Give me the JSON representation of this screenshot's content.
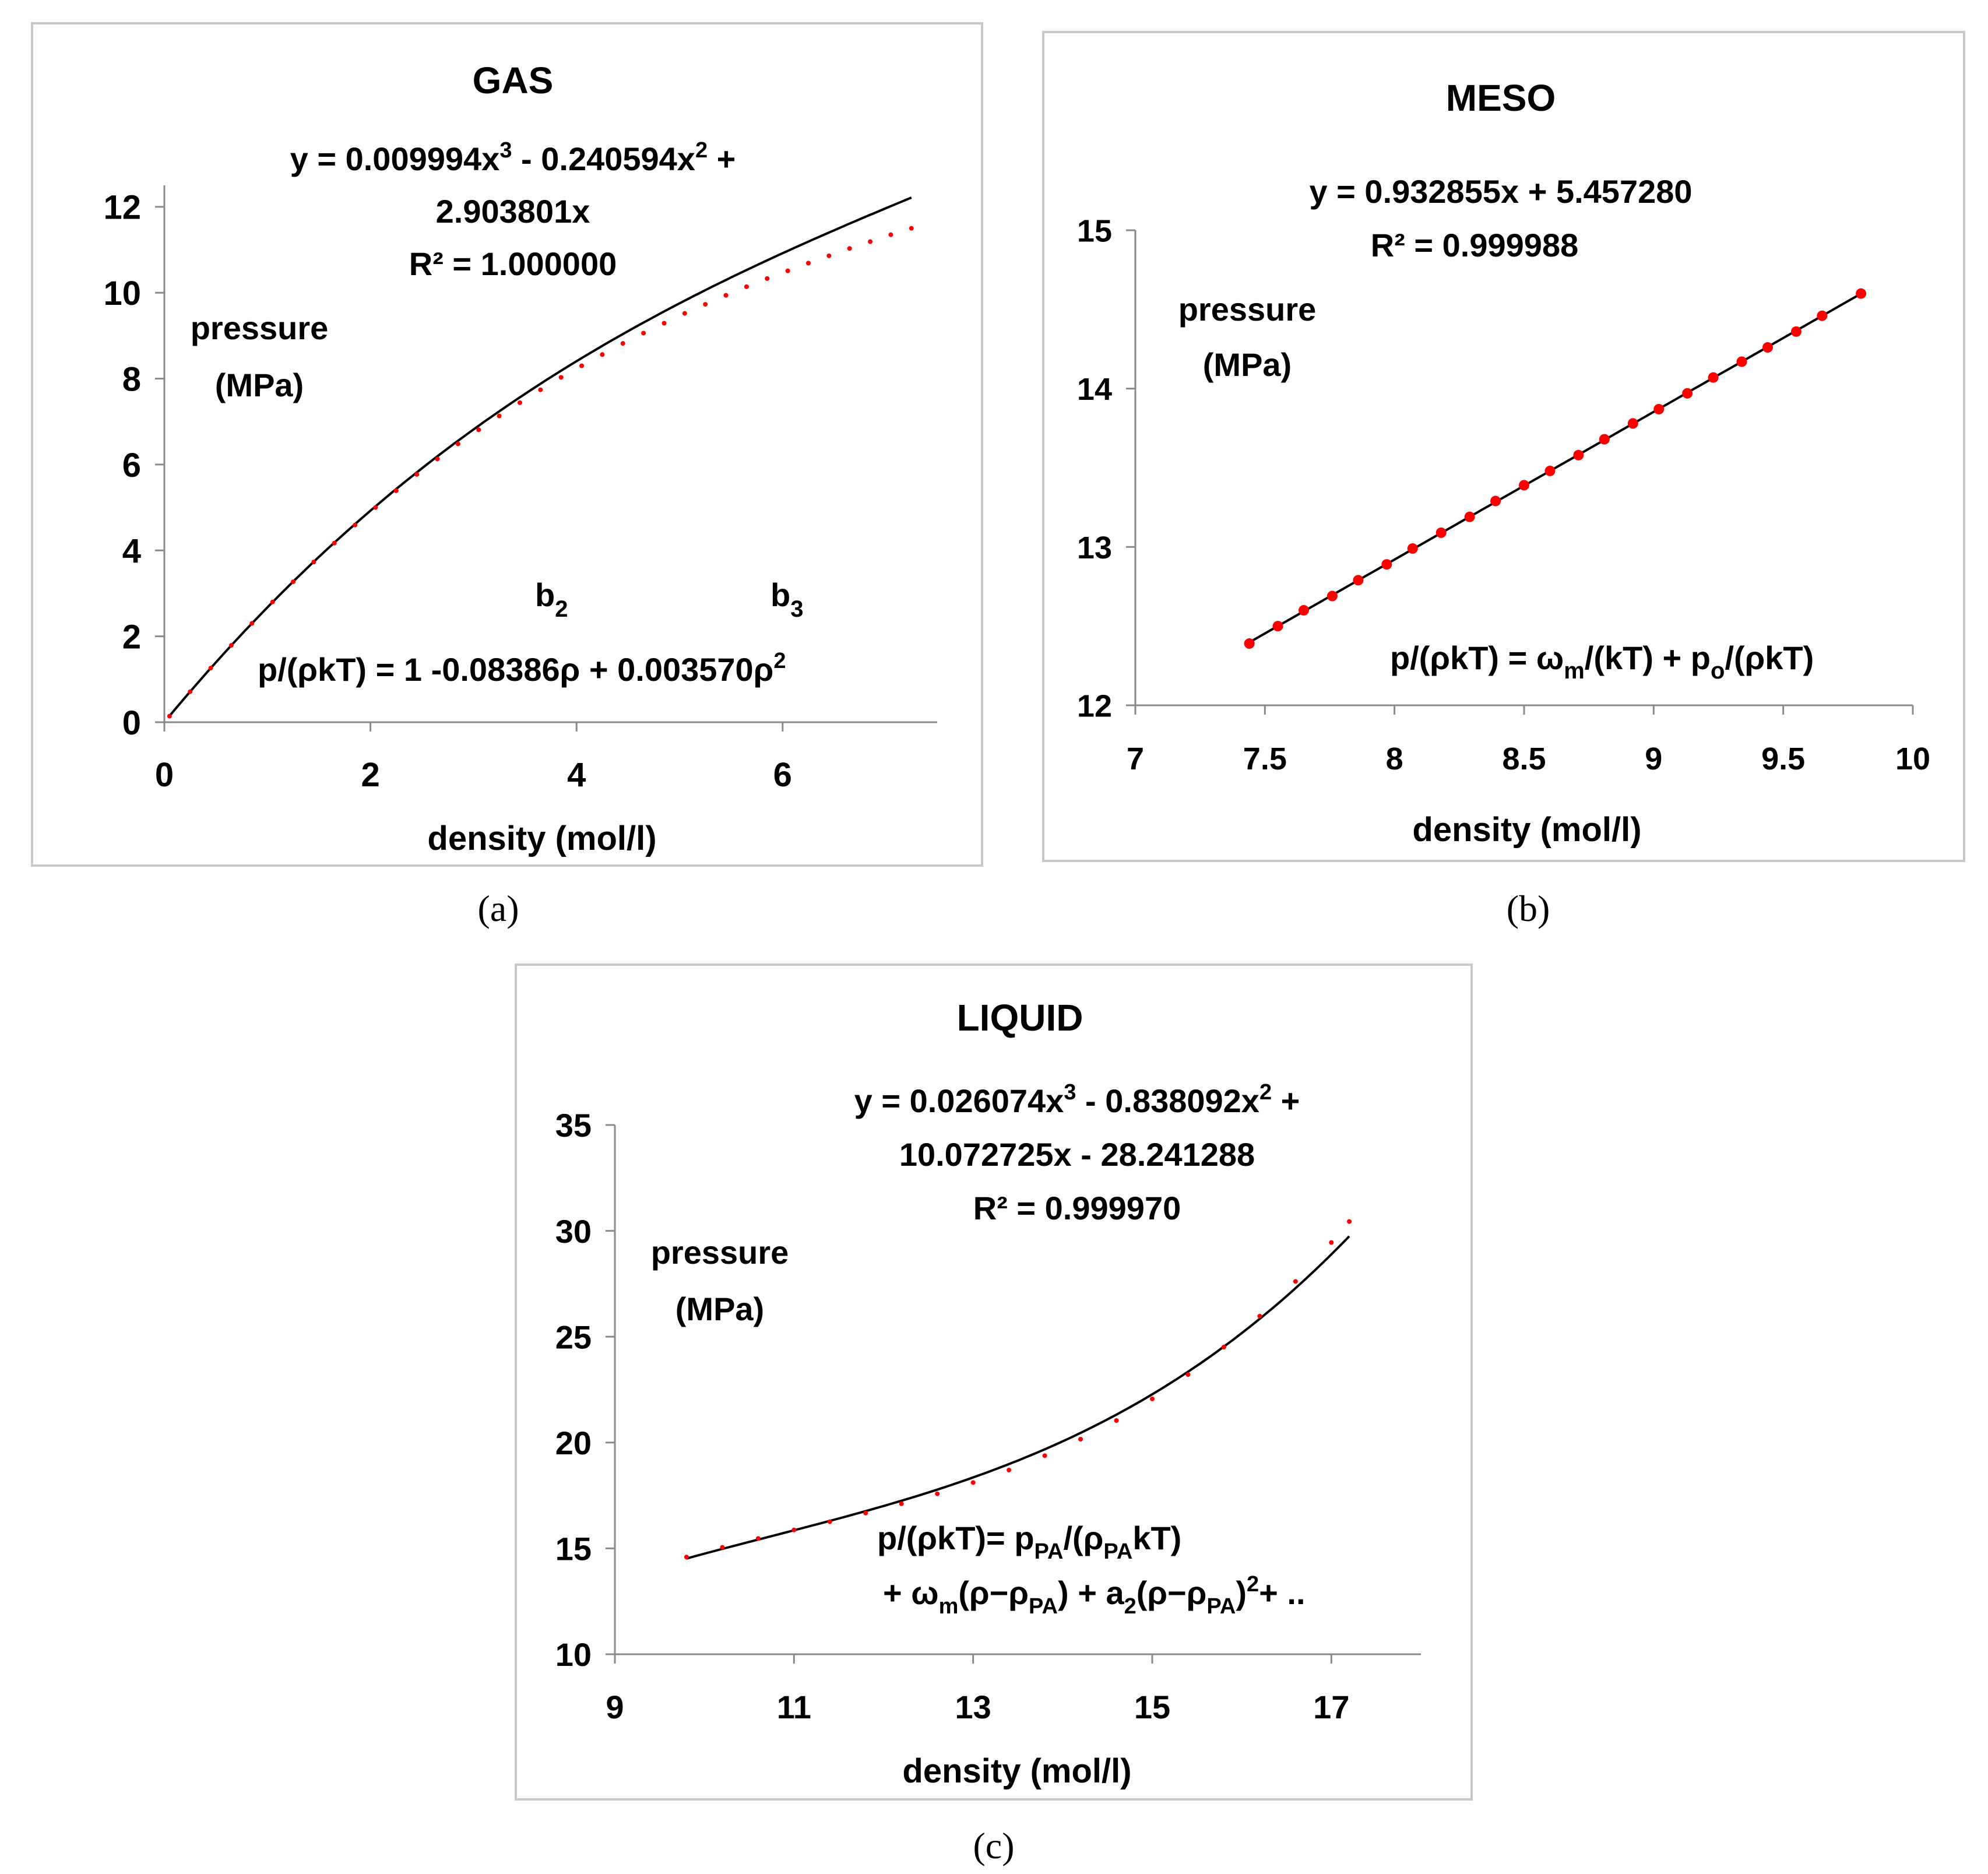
{
  "captions": [
    "(a)",
    "(b)",
    "(c)"
  ],
  "chart_data": [
    {
      "type": "line",
      "title": "GAS",
      "xlabel": "density (mol/l)",
      "ylabel": "pressure (MPa)",
      "ylabel_lines": [
        "pressure",
        "(MPa)"
      ],
      "xlim": [
        0,
        7.5
      ],
      "ylim": [
        0,
        12.5
      ],
      "xticks": [
        0,
        2,
        4,
        6
      ],
      "yticks": [
        0,
        2,
        4,
        6,
        8,
        10,
        12
      ],
      "grid": false,
      "marker_color": "#ff0000",
      "line_color": "#000000",
      "fit": {
        "kind": "poly",
        "coeffs": [
          0.009994,
          -0.240594,
          2.903801,
          0
        ]
      },
      "x": [
        0.05,
        0.25,
        0.45,
        0.65,
        0.85,
        1.05,
        1.25,
        1.45,
        1.65,
        1.85,
        2.05,
        2.25,
        2.45,
        2.65,
        2.85,
        3.05,
        3.25,
        3.45,
        3.65,
        3.85,
        4.05,
        4.25,
        4.45,
        4.65,
        4.85,
        5.05,
        5.25,
        5.45,
        5.65,
        5.85,
        6.05,
        6.25,
        6.45,
        6.65,
        6.85,
        7.05,
        7.25
      ],
      "y": [
        0.14,
        0.71,
        1.26,
        1.79,
        2.3,
        2.8,
        3.27,
        3.73,
        4.17,
        4.59,
        5.0,
        5.39,
        5.77,
        6.13,
        6.48,
        6.81,
        7.13,
        7.44,
        7.74,
        8.03,
        8.3,
        8.56,
        8.82,
        9.06,
        9.29,
        9.52,
        9.73,
        9.94,
        10.14,
        10.33,
        10.51,
        10.69,
        10.86,
        11.03,
        11.19,
        11.35,
        11.5
      ],
      "equation_lines": [
        "y = 0.009994x",
        "3",
        " - 0.240594x",
        "2",
        " +",
        "2.903801x",
        "R² = 1.000000"
      ],
      "b_labels": {
        "b2": "b",
        "b2_sub": "2",
        "b3": "b",
        "b3_sub": "3"
      },
      "formula": "p/(ρkT) = 1 -0.08386ρ + 0.003570ρ",
      "formula_sup": "2"
    },
    {
      "type": "line",
      "title": "MESO",
      "xlabel": "density (mol/l)",
      "ylabel": "pressure (MPa)",
      "ylabel_lines": [
        "pressure",
        "(MPa)"
      ],
      "xlim": [
        7,
        10
      ],
      "ylim": [
        12,
        15
      ],
      "xticks": [
        7,
        7.5,
        8,
        8.5,
        9,
        9.5,
        10
      ],
      "yticks": [
        12,
        13,
        14,
        15
      ],
      "grid": false,
      "marker_color": "#ff0000",
      "line_color": "#000000",
      "fit": {
        "kind": "linear",
        "slope": 0.932855,
        "intercept": 5.45728
      },
      "x": [
        7.44,
        7.55,
        7.65,
        7.76,
        7.86,
        7.97,
        8.07,
        8.18,
        8.29,
        8.39,
        8.5,
        8.6,
        8.71,
        8.81,
        8.92,
        9.02,
        9.13,
        9.23,
        9.34,
        9.44,
        9.55,
        9.65,
        9.8
      ],
      "y": [
        12.39,
        12.5,
        12.6,
        12.69,
        12.79,
        12.89,
        12.99,
        13.09,
        13.19,
        13.29,
        13.39,
        13.48,
        13.58,
        13.68,
        13.78,
        13.87,
        13.97,
        14.07,
        14.17,
        14.26,
        14.36,
        14.46,
        14.6
      ],
      "equation_lines": [
        "y = 0.932855x + 5.457280",
        "R² = 0.999988"
      ],
      "formula_parts": [
        "p/(ρkT) = ω",
        "m",
        "/(kT) + p",
        "o",
        "/(ρkT)"
      ]
    },
    {
      "type": "line",
      "title": "LIQUID",
      "xlabel": "density (mol/l)",
      "ylabel": "pressure (MPa)",
      "ylabel_lines": [
        "pressure",
        "(MPa)"
      ],
      "xlim": [
        9,
        18
      ],
      "ylim": [
        10,
        35
      ],
      "xticks": [
        9,
        11,
        13,
        15,
        17
      ],
      "yticks": [
        10,
        15,
        20,
        25,
        30,
        35
      ],
      "grid": false,
      "marker_color": "#ff0000",
      "line_color": "#000000",
      "fit": {
        "kind": "poly",
        "coeffs": [
          0.026074,
          -0.838092,
          10.072725,
          -28.241288
        ]
      },
      "x": [
        9.8,
        10.2,
        10.6,
        11.0,
        11.4,
        11.8,
        12.2,
        12.6,
        13.0,
        13.4,
        13.8,
        14.2,
        14.6,
        15.0,
        15.4,
        15.8,
        16.2,
        16.6,
        17.0,
        17.2
      ],
      "y": [
        14.59,
        15.05,
        15.47,
        15.87,
        16.26,
        16.67,
        17.11,
        17.58,
        18.11,
        18.7,
        19.38,
        20.16,
        21.04,
        22.06,
        23.21,
        24.51,
        25.97,
        27.61,
        29.45,
        30.44
      ],
      "equation_lines": [
        "y = 0.026074x",
        "3",
        " - 0.838092x",
        "2",
        " +",
        "10.072725x - 28.241288",
        "R² = 0.999970"
      ],
      "formula_line1_parts": [
        "p/(ρkT)=  p",
        "PA",
        "/(ρ",
        "PA",
        "kT)"
      ],
      "formula_line2_parts": [
        "+ ω",
        "m",
        "(ρ−ρ",
        "PA",
        ") + a",
        "2",
        "(ρ−ρ",
        "PA",
        ")",
        "2",
        "+ .."
      ]
    }
  ]
}
